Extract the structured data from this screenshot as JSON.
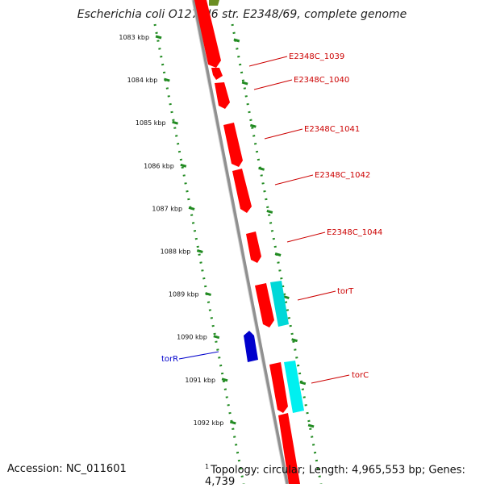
{
  "title": "Escherichia coli O127:H6 str. E2348/69, complete genome",
  "accession": "Accession: NC_011601",
  "footnote_marker": "1",
  "topology": "Topology: circular; Length: 4,965,553 bp; Genes: 4,739",
  "colors": {
    "forward_gene": "#ff0000",
    "reverse_gene": "#0000cc",
    "cds_highlight": "#00d8d8",
    "olive_gene": "#6b8e23",
    "dotted_track": "#228b22",
    "backbone": "#888888",
    "gene_label": "#cc0000",
    "reverse_label": "#0000cc"
  },
  "ticks": [
    {
      "label": "1083 kbp"
    },
    {
      "label": "1084 kbp"
    },
    {
      "label": "1085 kbp"
    },
    {
      "label": "1086 kbp"
    },
    {
      "label": "1087 kbp"
    },
    {
      "label": "1088 kbp"
    },
    {
      "label": "1089 kbp"
    },
    {
      "label": "1090 kbp"
    },
    {
      "label": "1091 kbp"
    },
    {
      "label": "1092 kbp"
    }
  ],
  "gene_labels": [
    {
      "name": "E2348C_1039",
      "strand": "forward"
    },
    {
      "name": "E2348C_1040",
      "strand": "forward"
    },
    {
      "name": "E2348C_1041",
      "strand": "forward"
    },
    {
      "name": "E2348C_1042",
      "strand": "forward"
    },
    {
      "name": "E2348C_1044",
      "strand": "forward"
    },
    {
      "name": "torT",
      "strand": "forward"
    },
    {
      "name": "torR",
      "strand": "reverse"
    },
    {
      "name": "torC",
      "strand": "forward"
    }
  ]
}
